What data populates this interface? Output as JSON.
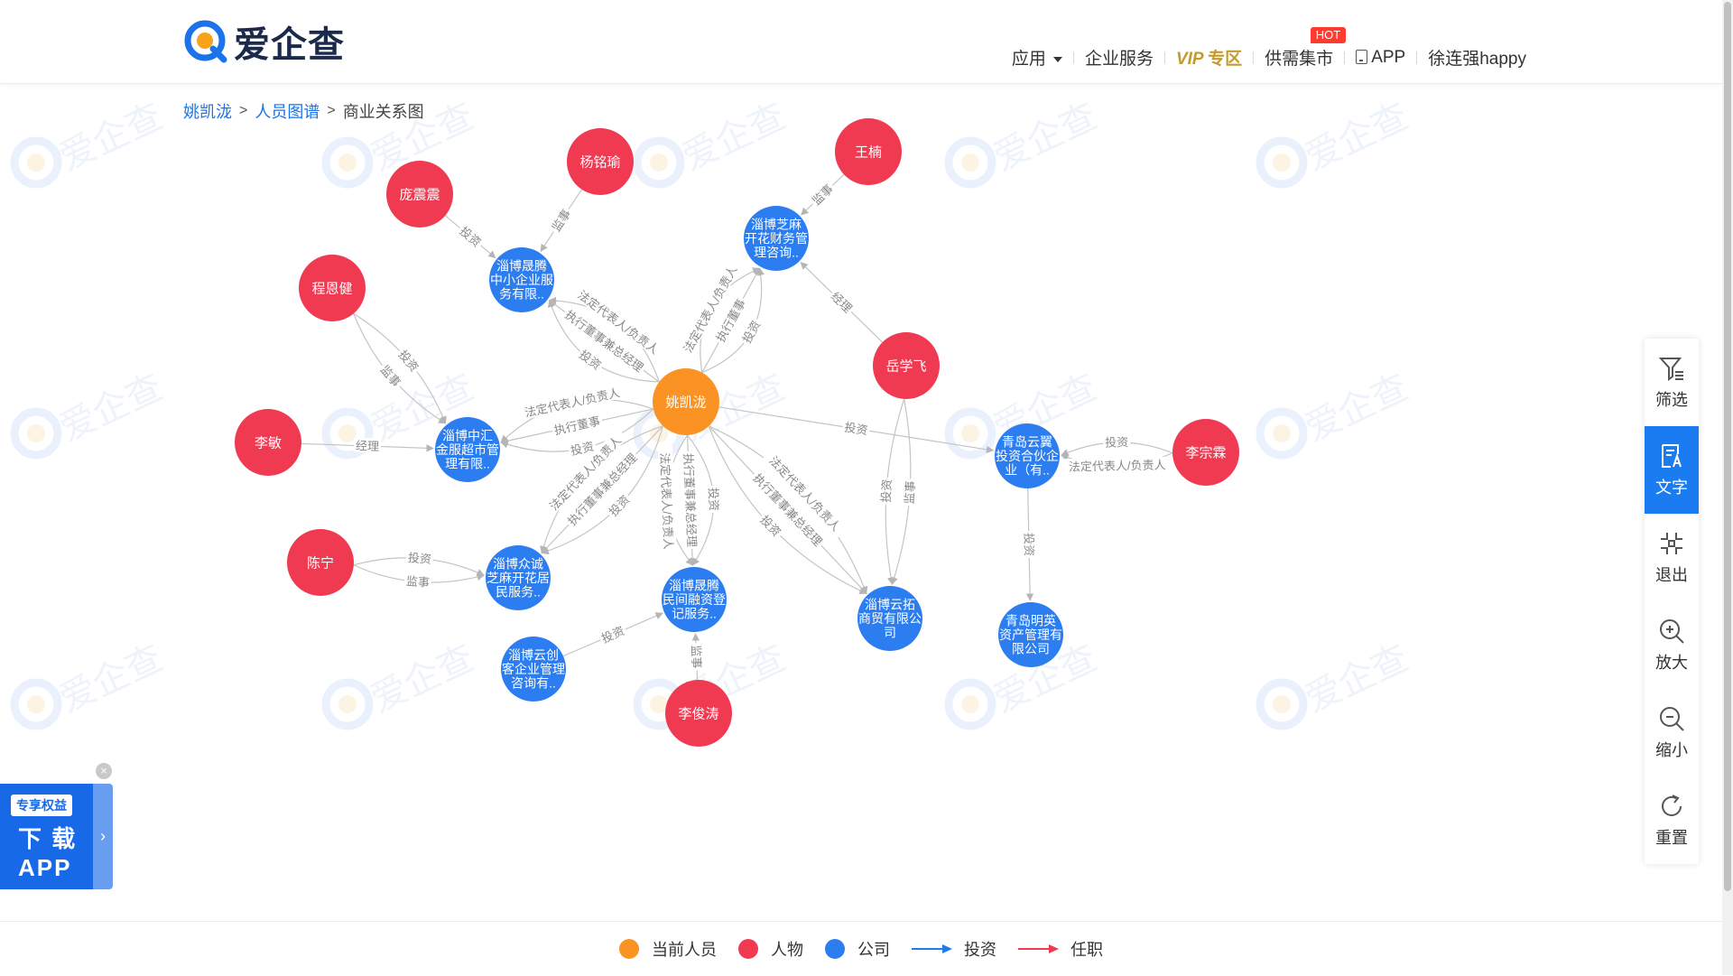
{
  "header": {
    "logo_text": "爱企查",
    "nav": {
      "apps": "应用",
      "enterprise": "企业服务",
      "vip_main": "VIP",
      "vip_zone": "专区",
      "market": "供需集市",
      "hot_badge": "HOT",
      "app": "APP",
      "user": "徐连强happy"
    }
  },
  "breadcrumb": {
    "home": "姚凯泷",
    "graph": "人员图谱",
    "current": "商业关系图"
  },
  "colors": {
    "current_person": "#fa9324",
    "person": "#ef3a52",
    "company": "#2b7df0",
    "invest_line": "#1f7aea",
    "position_line": "#ef3a52",
    "edge": "#c4c4c4"
  },
  "graph": {
    "nodes": [
      {
        "id": "yao",
        "type": "current",
        "lines": [
          "姚凯泷"
        ]
      },
      {
        "id": "yangmingyu",
        "type": "person",
        "lines": [
          "杨铭瑜"
        ]
      },
      {
        "id": "pangzhenzhen",
        "type": "person",
        "lines": [
          "庞震震"
        ]
      },
      {
        "id": "chengenjian",
        "type": "person",
        "lines": [
          "程恩健"
        ]
      },
      {
        "id": "limin",
        "type": "person",
        "lines": [
          "李敏"
        ]
      },
      {
        "id": "chenning",
        "type": "person",
        "lines": [
          "陈宁"
        ]
      },
      {
        "id": "lijuntao",
        "type": "person",
        "lines": [
          "李俊涛"
        ]
      },
      {
        "id": "wangnan",
        "type": "person",
        "lines": [
          "王楠"
        ]
      },
      {
        "id": "yuexuefei",
        "type": "person",
        "lines": [
          "岳学飞"
        ]
      },
      {
        "id": "lizonglin",
        "type": "person",
        "lines": [
          "李宗霖"
        ]
      },
      {
        "id": "c_shengteng_zx",
        "type": "company",
        "lines": [
          "淄博晟腾",
          "中小企业服",
          "务有限.."
        ]
      },
      {
        "id": "c_zhimakaihua",
        "type": "company",
        "lines": [
          "淄博芝麻",
          "开花财务管",
          "理咨询.."
        ]
      },
      {
        "id": "c_zhonghui",
        "type": "company",
        "lines": [
          "淄博中汇",
          "金服超市管",
          "理有限.."
        ]
      },
      {
        "id": "c_zhongcheng",
        "type": "company",
        "lines": [
          "淄博众诚",
          "芝麻开花居",
          "民服务.."
        ]
      },
      {
        "id": "c_shengteng_mj",
        "type": "company",
        "lines": [
          "淄博晟腾",
          "民间融资登",
          "记服务.."
        ]
      },
      {
        "id": "c_yunchuang",
        "type": "company",
        "lines": [
          "淄博云创",
          "客企业管理",
          "咨询有.."
        ]
      },
      {
        "id": "c_yuntuo",
        "type": "company",
        "lines": [
          "淄博云拓",
          "商贸有限公",
          "司"
        ]
      },
      {
        "id": "c_yunyi",
        "type": "company",
        "lines": [
          "青岛云翼",
          "投资合伙企",
          "业（有.."
        ]
      },
      {
        "id": "c_mingying",
        "type": "company",
        "lines": [
          "青岛明英",
          "资产管理有",
          "限公司"
        ]
      }
    ],
    "edges": [
      {
        "from": "pangzhenzhen",
        "to": "c_shengteng_zx",
        "label": "投资"
      },
      {
        "from": "yangmingyu",
        "to": "c_shengteng_zx",
        "label": "监事"
      },
      {
        "from": "yao",
        "to": "c_shengteng_zx",
        "label": "投资"
      },
      {
        "from": "yao",
        "to": "c_shengteng_zx",
        "label": "执行董事兼总经理"
      },
      {
        "from": "yao",
        "to": "c_shengteng_zx",
        "label": "法定代表人/负责人"
      },
      {
        "from": "wangnan",
        "to": "c_zhimakaihua",
        "label": "监事"
      },
      {
        "from": "yuexuefei",
        "to": "c_zhimakaihua",
        "label": "经理"
      },
      {
        "from": "yao",
        "to": "c_zhimakaihua",
        "label": "法定代表人/负责人"
      },
      {
        "from": "yao",
        "to": "c_zhimakaihua",
        "label": "执行董事"
      },
      {
        "from": "yao",
        "to": "c_zhimakaihua",
        "label": "投资"
      },
      {
        "from": "chengenjian",
        "to": "c_zhonghui",
        "label": "投资"
      },
      {
        "from": "chengenjian",
        "to": "c_zhonghui",
        "label": "监事"
      },
      {
        "from": "limin",
        "to": "c_zhonghui",
        "label": "经理"
      },
      {
        "from": "yao",
        "to": "c_zhonghui",
        "label": "投资"
      },
      {
        "from": "yao",
        "to": "c_zhonghui",
        "label": "执行董事"
      },
      {
        "from": "yao",
        "to": "c_zhonghui",
        "label": "法定代表人/负责人"
      },
      {
        "from": "chenning",
        "to": "c_zhongcheng",
        "label": "投资"
      },
      {
        "from": "chenning",
        "to": "c_zhongcheng",
        "label": "监事"
      },
      {
        "from": "yao",
        "to": "c_zhongcheng",
        "label": "投资"
      },
      {
        "from": "yao",
        "to": "c_zhongcheng",
        "label": "执行董事兼总经理"
      },
      {
        "from": "yao",
        "to": "c_zhongcheng",
        "label": "法定代表人/负责人"
      },
      {
        "from": "yao",
        "to": "c_shengteng_mj",
        "label": "投资"
      },
      {
        "from": "yao",
        "to": "c_shengteng_mj",
        "label": "执行董事兼总经理"
      },
      {
        "from": "yao",
        "to": "c_shengteng_mj",
        "label": "法定代表人/负责人"
      },
      {
        "from": "c_yunchuang",
        "to": "c_shengteng_mj",
        "label": "投资"
      },
      {
        "from": "lijuntao",
        "to": "c_shengteng_mj",
        "label": "监事"
      },
      {
        "from": "yao",
        "to": "c_yuntuo",
        "label": "法定代表人/负责人"
      },
      {
        "from": "yao",
        "to": "c_yuntuo",
        "label": "执行董事兼总经理"
      },
      {
        "from": "yao",
        "to": "c_yuntuo",
        "label": "投资"
      },
      {
        "from": "yuexuefei",
        "to": "c_yuntuo",
        "label": "监事"
      },
      {
        "from": "yuexuefei",
        "to": "c_yuntuo",
        "label": "投资"
      },
      {
        "from": "yao",
        "to": "c_yunyi",
        "label": "投资"
      },
      {
        "from": "lizonglin",
        "to": "c_yunyi",
        "label": "法定代表人/负责人"
      },
      {
        "from": "lizonglin",
        "to": "c_yunyi",
        "label": "投资"
      },
      {
        "from": "c_yunyi",
        "to": "c_mingying",
        "label": "投资"
      }
    ]
  },
  "toolbar": {
    "filter": "筛选",
    "text": "文字",
    "exit": "退出",
    "zoom_in": "放大",
    "zoom_out": "缩小",
    "reset": "重置"
  },
  "legend": {
    "current_person": "当前人员",
    "person": "人物",
    "company": "公司",
    "invest": "投资",
    "position": "任职"
  },
  "download": {
    "badge": "专享权益",
    "line1": "下 载",
    "line2": "APP"
  }
}
